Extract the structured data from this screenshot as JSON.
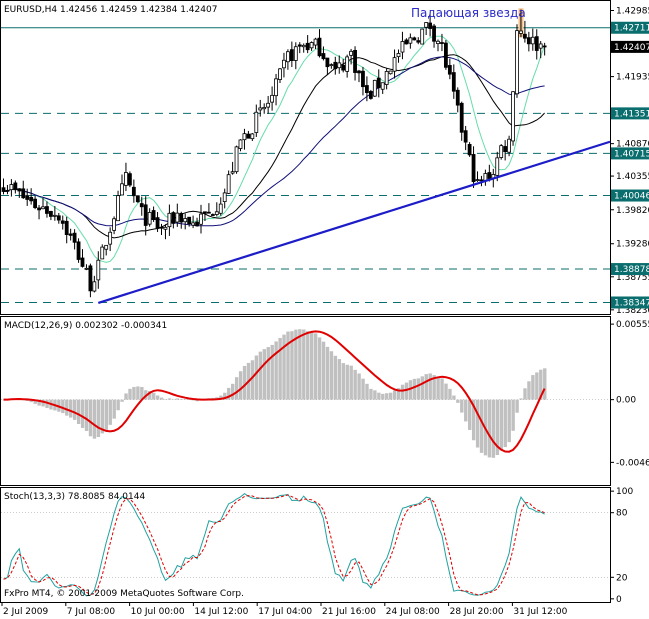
{
  "header": {
    "main_title": "EURUSD,H4  1.42456 1.42459 1.42384 1.42407",
    "annotation": "Падающая звезда",
    "macd_title": "MACD(12,26,9) 0.002302 -0.000341",
    "stoch_title": "Stoch(13,3,3) 78.8085 84.0144",
    "copyright": "FxPro MT4, © 2001-2009 MetaQuotes Software Corp."
  },
  "colors": {
    "frame": "#000000",
    "trendline": "#1c1cc8",
    "level_line": "#0b6e6e",
    "price_label_bg": "#0b6e6e",
    "macd_hist": "#c0c0c0",
    "macd_signal": "#e00000",
    "stoch_main": "#20a0a0",
    "stoch_signal": "#e00000",
    "ma_fast": "#66ddaa",
    "ma_mid": "#000000",
    "ma_slow": "#10107a",
    "highlight": "#f5c08a"
  },
  "chart_data": [
    {
      "type": "candlestick",
      "symbol": "EURUSD",
      "timeframe": "H4",
      "last_close": 1.42407,
      "ylim": [
        1.3818,
        1.4312
      ],
      "y_ticks": [
        "1.42985",
        "1.41935",
        "1.40870",
        "1.40355",
        "1.39820",
        "1.39280",
        "1.38755",
        "1.38230"
      ],
      "price_labels": [
        {
          "value": 1.42711,
          "text": "1.42711",
          "style": "level"
        },
        {
          "value": 1.42407,
          "text": "1.42407",
          "style": "current"
        },
        {
          "value": 1.41351,
          "text": "1.41351",
          "style": "level"
        },
        {
          "value": 1.40715,
          "text": "1.40715",
          "style": "level"
        },
        {
          "value": 1.40046,
          "text": "1.40046",
          "style": "level"
        },
        {
          "value": 1.38878,
          "text": "1.38878",
          "style": "level"
        },
        {
          "value": 1.38347,
          "text": "1.38347",
          "style": "level"
        }
      ],
      "horizontal_levels": [
        {
          "value": 1.42711,
          "style": "solid"
        },
        {
          "value": 1.41351,
          "style": "dashed"
        },
        {
          "value": 1.40715,
          "style": "dashed"
        },
        {
          "value": 1.40046,
          "style": "dashed"
        },
        {
          "value": 1.38878,
          "style": "dashed"
        },
        {
          "value": 1.38347,
          "style": "dashed"
        }
      ],
      "trendline": {
        "from": [
          "7 Jul 2009 16:00",
          1.3834
        ],
        "to": [
          "3 Aug 2009 00:00",
          1.409
        ]
      },
      "x_labels": [
        "2 Jul 2009",
        "7 Jul 08:00",
        "10 Jul 00:00",
        "14 Jul 12:00",
        "17 Jul 04:00",
        "21 Jul 16:00",
        "24 Jul 08:00",
        "28 Jul 20:00",
        "31 Jul 12:00"
      ],
      "annotation": {
        "text": "Падающая звезда",
        "bar_index": 131
      }
    },
    {
      "type": "macd",
      "params": "MACD(12,26,9)",
      "main": 0.002302,
      "signal": -0.000341,
      "ylim": [
        -0.0062,
        0.006
      ],
      "y_ticks": [
        "0.00555",
        "0.00",
        "-0.00461"
      ]
    },
    {
      "type": "stochastic",
      "params": "Stoch(13,3,3)",
      "main": 78.8085,
      "signal": 84.0144,
      "ylim": [
        -2,
        102
      ],
      "y_ticks": [
        "100",
        "80",
        "20",
        "0"
      ]
    }
  ]
}
